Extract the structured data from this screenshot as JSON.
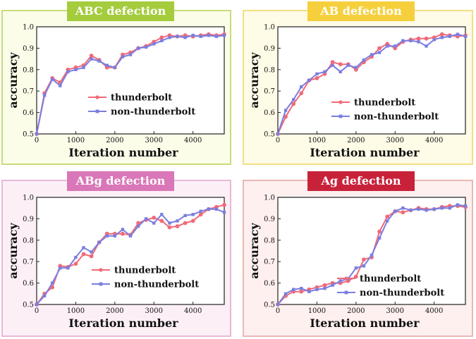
{
  "chart_data": [
    {
      "type": "line",
      "title": "ABC defection",
      "xlabel": "Iteration number",
      "ylabel": "accuracy",
      "xlim": [
        0,
        4800
      ],
      "ylim": [
        0.5,
        1.0
      ],
      "xticks": [
        0,
        1000,
        2000,
        3000,
        4000
      ],
      "yticks": [
        0.5,
        0.6,
        0.7,
        0.8,
        0.9,
        1.0
      ],
      "legend": "center-right",
      "colors": {
        "panel_bg": "#fbfde9",
        "panel_border": "#c8dc78",
        "title_bg": "#a4cc3c"
      },
      "series": [
        {
          "name": "thunderbolt",
          "color": "#f06a78",
          "x": [
            0,
            200,
            400,
            600,
            800,
            1000,
            1200,
            1400,
            1600,
            1800,
            2000,
            2200,
            2400,
            2600,
            2800,
            3000,
            3200,
            3400,
            3600,
            3800,
            4000,
            4200,
            4400,
            4600,
            4800
          ],
          "y": [
            0.5,
            0.69,
            0.76,
            0.74,
            0.8,
            0.81,
            0.82,
            0.865,
            0.845,
            0.81,
            0.81,
            0.87,
            0.88,
            0.9,
            0.91,
            0.93,
            0.95,
            0.96,
            0.955,
            0.96,
            0.955,
            0.96,
            0.965,
            0.96,
            0.965
          ]
        },
        {
          "name": "non-thunderbolt",
          "color": "#7a7ee0",
          "x": [
            0,
            200,
            400,
            600,
            800,
            1000,
            1200,
            1400,
            1600,
            1800,
            2000,
            2200,
            2400,
            2600,
            2800,
            3000,
            3200,
            3400,
            3600,
            3800,
            4000,
            4200,
            4400,
            4600,
            4800
          ],
          "y": [
            0.5,
            0.68,
            0.755,
            0.725,
            0.79,
            0.8,
            0.81,
            0.85,
            0.84,
            0.82,
            0.81,
            0.86,
            0.87,
            0.9,
            0.905,
            0.92,
            0.935,
            0.95,
            0.955,
            0.95,
            0.96,
            0.955,
            0.96,
            0.955,
            0.96
          ]
        }
      ]
    },
    {
      "type": "line",
      "title": "AB defection",
      "xlabel": "Iteration number",
      "ylabel": "accuracy",
      "xlim": [
        0,
        4800
      ],
      "ylim": [
        0.5,
        1.0
      ],
      "xticks": [
        0,
        1000,
        2000,
        3000,
        4000
      ],
      "yticks": [
        0.5,
        0.6,
        0.7,
        0.8,
        0.9,
        1.0
      ],
      "legend": "center-right",
      "colors": {
        "panel_bg": "#fefbe6",
        "panel_border": "#f2df86",
        "title_bg": "#f6d03c"
      },
      "series": [
        {
          "name": "thunderbolt",
          "color": "#f06a78",
          "x": [
            0,
            200,
            400,
            600,
            800,
            1000,
            1200,
            1400,
            1600,
            1800,
            2000,
            2200,
            2400,
            2600,
            2800,
            3000,
            3200,
            3400,
            3600,
            3800,
            4000,
            4200,
            4400,
            4600,
            4800
          ],
          "y": [
            0.5,
            0.58,
            0.64,
            0.69,
            0.75,
            0.76,
            0.78,
            0.835,
            0.825,
            0.825,
            0.8,
            0.835,
            0.86,
            0.9,
            0.92,
            0.9,
            0.93,
            0.94,
            0.945,
            0.945,
            0.95,
            0.965,
            0.96,
            0.955,
            0.96
          ]
        },
        {
          "name": "non-thunderbolt",
          "color": "#7a7ee0",
          "x": [
            0,
            200,
            400,
            600,
            800,
            1000,
            1200,
            1400,
            1600,
            1800,
            2000,
            2200,
            2400,
            2600,
            2800,
            3000,
            3200,
            3400,
            3600,
            3800,
            4000,
            4200,
            4400,
            4600,
            4800
          ],
          "y": [
            0.5,
            0.61,
            0.66,
            0.72,
            0.75,
            0.78,
            0.79,
            0.82,
            0.79,
            0.82,
            0.81,
            0.845,
            0.87,
            0.88,
            0.91,
            0.91,
            0.935,
            0.935,
            0.93,
            0.91,
            0.94,
            0.95,
            0.955,
            0.965,
            0.955
          ]
        }
      ]
    },
    {
      "type": "line",
      "title": "ABg defection",
      "xlabel": "Iteration number",
      "ylabel": "accuracy",
      "xlim": [
        0,
        4800
      ],
      "ylim": [
        0.5,
        1.0
      ],
      "xticks": [
        0,
        1000,
        2000,
        3000,
        4000
      ],
      "yticks": [
        0.5,
        0.6,
        0.7,
        0.8,
        0.9,
        1.0
      ],
      "legend": "center-right",
      "colors": {
        "panel_bg": "#fcf0f6",
        "panel_border": "#e8b8d8",
        "title_bg": "#d977b8"
      },
      "series": [
        {
          "name": "thunderbolt",
          "color": "#f06a78",
          "x": [
            0,
            200,
            400,
            600,
            800,
            1000,
            1200,
            1400,
            1600,
            1800,
            2000,
            2200,
            2400,
            2600,
            2800,
            3000,
            3200,
            3400,
            3600,
            3800,
            4000,
            4200,
            4400,
            4600,
            4800
          ],
          "y": [
            0.5,
            0.55,
            0.58,
            0.68,
            0.675,
            0.69,
            0.735,
            0.725,
            0.79,
            0.83,
            0.83,
            0.83,
            0.825,
            0.88,
            0.895,
            0.905,
            0.89,
            0.86,
            0.865,
            0.88,
            0.89,
            0.92,
            0.945,
            0.955,
            0.965
          ]
        },
        {
          "name": "non-thunderbolt",
          "color": "#7a7ee0",
          "x": [
            0,
            200,
            400,
            600,
            800,
            1000,
            1200,
            1400,
            1600,
            1800,
            2000,
            2200,
            2400,
            2600,
            2800,
            3000,
            3200,
            3400,
            3600,
            3800,
            4000,
            4200,
            4400,
            4600,
            4800
          ],
          "y": [
            0.5,
            0.54,
            0.6,
            0.67,
            0.67,
            0.72,
            0.765,
            0.745,
            0.79,
            0.82,
            0.82,
            0.85,
            0.82,
            0.865,
            0.9,
            0.88,
            0.92,
            0.88,
            0.89,
            0.915,
            0.92,
            0.935,
            0.945,
            0.945,
            0.93
          ]
        }
      ]
    },
    {
      "type": "line",
      "title": "Ag defection",
      "xlabel": "Iteration number",
      "ylabel": "accuracy",
      "xlim": [
        0,
        4800
      ],
      "ylim": [
        0.5,
        1.0
      ],
      "xticks": [
        0,
        1000,
        2000,
        3000,
        4000
      ],
      "yticks": [
        0.5,
        0.6,
        0.7,
        0.8,
        0.9,
        1.0
      ],
      "legend": "bottom-right",
      "colors": {
        "panel_bg": "#fdf0ef",
        "panel_border": "#eab8b4",
        "title_bg": "#c8223a"
      },
      "series": [
        {
          "name": "thunderbolt",
          "color": "#f06a78",
          "x": [
            0,
            200,
            400,
            600,
            800,
            1000,
            1200,
            1400,
            1600,
            1800,
            2000,
            2200,
            2400,
            2600,
            2800,
            3000,
            3200,
            3400,
            3600,
            3800,
            4000,
            4200,
            4400,
            4600,
            4800
          ],
          "y": [
            0.5,
            0.54,
            0.56,
            0.56,
            0.57,
            0.58,
            0.59,
            0.6,
            0.6,
            0.61,
            0.63,
            0.71,
            0.72,
            0.84,
            0.91,
            0.935,
            0.93,
            0.94,
            0.95,
            0.945,
            0.945,
            0.955,
            0.96,
            0.96,
            0.955
          ]
        },
        {
          "name": "non-thunderbolt",
          "color": "#7a7ee0",
          "x": [
            0,
            200,
            400,
            600,
            800,
            1000,
            1200,
            1400,
            1600,
            1800,
            2000,
            2200,
            2400,
            2600,
            2800,
            3000,
            3200,
            3400,
            3600,
            3800,
            4000,
            4200,
            4400,
            4600,
            4800
          ],
          "y": [
            0.5,
            0.55,
            0.57,
            0.575,
            0.56,
            0.57,
            0.575,
            0.59,
            0.61,
            0.62,
            0.67,
            0.68,
            0.73,
            0.81,
            0.89,
            0.935,
            0.95,
            0.94,
            0.945,
            0.94,
            0.945,
            0.95,
            0.95,
            0.965,
            0.96
          ]
        }
      ]
    }
  ]
}
